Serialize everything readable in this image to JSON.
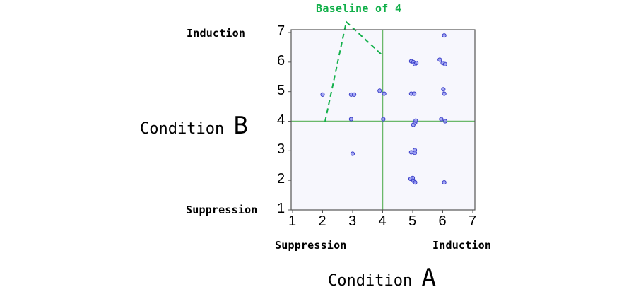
{
  "chart_data": {
    "type": "scatter",
    "title": "",
    "annotation": "Baseline of 4",
    "xlabel": "Condition A",
    "ylabel": "Condition B",
    "xlabel_main": "Condition",
    "xlabel_letter": "A",
    "ylabel_main": "Condition",
    "ylabel_letter": "B",
    "xlim": [
      1,
      7
    ],
    "ylim": [
      1,
      7
    ],
    "x_ticks": [
      "1",
      "2",
      "3",
      "4",
      "5",
      "6",
      "7"
    ],
    "y_ticks": [
      "1",
      "2",
      "3",
      "4",
      "5",
      "6",
      "7"
    ],
    "x_end_labels": {
      "low": "Suppression",
      "high": "Induction"
    },
    "y_end_labels": {
      "low": "Suppression",
      "high": "Induction"
    },
    "reference_lines": {
      "x": 4,
      "y": 4
    },
    "grid": false,
    "legend": null,
    "series": [
      {
        "name": "observations",
        "points": [
          [
            2.0,
            4.9
          ],
          [
            2.95,
            4.9
          ],
          [
            3.05,
            4.9
          ],
          [
            2.95,
            4.07
          ],
          [
            3.0,
            2.9
          ],
          [
            3.9,
            5.03
          ],
          [
            4.05,
            4.93
          ],
          [
            4.02,
            4.07
          ],
          [
            4.95,
            6.03
          ],
          [
            5.02,
            6.0
          ],
          [
            5.07,
            5.93
          ],
          [
            5.12,
            5.97
          ],
          [
            4.95,
            4.93
          ],
          [
            5.05,
            4.93
          ],
          [
            5.02,
            3.88
          ],
          [
            5.08,
            3.95
          ],
          [
            5.1,
            4.02
          ],
          [
            4.95,
            2.95
          ],
          [
            5.07,
            3.02
          ],
          [
            5.07,
            2.93
          ],
          [
            4.93,
            2.05
          ],
          [
            5.0,
            2.08
          ],
          [
            5.03,
            1.98
          ],
          [
            5.08,
            1.93
          ],
          [
            5.9,
            6.08
          ],
          [
            6.0,
            5.97
          ],
          [
            6.08,
            5.93
          ],
          [
            6.02,
            5.08
          ],
          [
            6.05,
            4.93
          ],
          [
            5.95,
            4.07
          ],
          [
            6.08,
            4.0
          ],
          [
            6.05,
            1.93
          ],
          [
            6.05,
            6.9
          ]
        ]
      }
    ],
    "colors": {
      "plot_background": "#f7f7fd",
      "points_fill": "#8a8ef0",
      "points_stroke": "#3c40c8",
      "reference_line": "#6ab86a",
      "baseline_annotation": "#12b04a",
      "axis": "#555555"
    }
  }
}
